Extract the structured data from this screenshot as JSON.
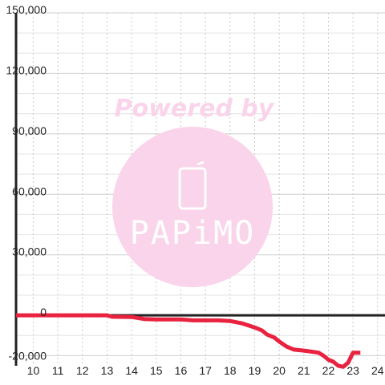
{
  "chart_data": {
    "type": "line",
    "title": "",
    "xlabel": "",
    "ylabel": "",
    "xlim": [
      9.3,
      24.3
    ],
    "ylim": [
      -25000,
      150000
    ],
    "x_ticks": [
      "10",
      "11",
      "12",
      "13",
      "14",
      "15",
      "16",
      "17",
      "18",
      "19",
      "20",
      "21",
      "22",
      "23",
      "24"
    ],
    "y_ticks": [
      "150,000",
      "120,000",
      "90,000",
      "60,000",
      "30,000",
      "0",
      "-20,000"
    ],
    "y_tick_values": [
      150000,
      120000,
      90000,
      60000,
      30000,
      0,
      -20000
    ],
    "grid": true,
    "series": [
      {
        "color": "#e8223f",
        "x": [
          9.3,
          10,
          11,
          12,
          13,
          13.2,
          14,
          14.5,
          15,
          15.5,
          16,
          16.5,
          17,
          17.5,
          18,
          18.5,
          19,
          19.3,
          19.5,
          19.8,
          20,
          20.3,
          20.6,
          21,
          21.3,
          21.6,
          21.8,
          22,
          22.2,
          22.4,
          22.6,
          22.8,
          22.9,
          23,
          23.3
        ],
        "y": [
          0,
          0,
          0,
          0,
          0,
          -700,
          -800,
          -1800,
          -2000,
          -2000,
          -2000,
          -2500,
          -2500,
          -2500,
          -2800,
          -4000,
          -6000,
          -7500,
          -9500,
          -11000,
          -13000,
          -15500,
          -17000,
          -17500,
          -18000,
          -18500,
          -20000,
          -22000,
          -23000,
          -25000,
          -25500,
          -23500,
          -21000,
          -18500,
          -18500
        ]
      }
    ]
  },
  "watermark": {
    "line1": "Powered by",
    "brand": "PAPiMO",
    "color": "#fad4ea"
  }
}
